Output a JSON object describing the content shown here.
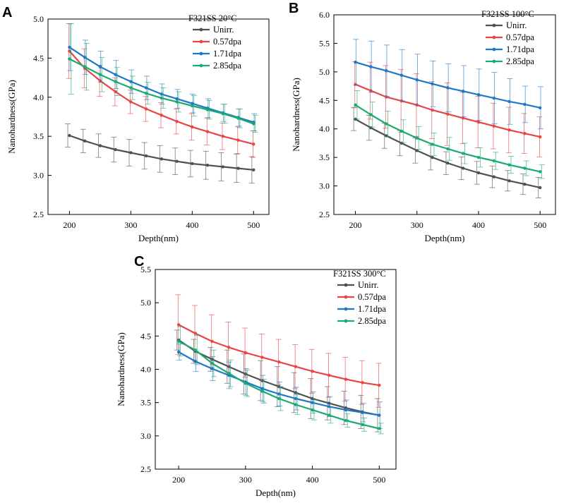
{
  "chart_data": [
    {
      "panel": "A",
      "type": "line",
      "title": "F321SS 20°C",
      "xlabel": "Depth(nm)",
      "ylabel": "Nanohardness(GPa)",
      "xlim": [
        165,
        525
      ],
      "ylim": [
        2.5,
        5.0
      ],
      "xticks": [
        200,
        300,
        400,
        500
      ],
      "yticks": [
        "2.5",
        "3.0",
        "3.5",
        "4.0",
        "4.5",
        "5.0"
      ],
      "legend_position": "top-right",
      "x": [
        200,
        225,
        250,
        275,
        300,
        325,
        350,
        375,
        400,
        425,
        450,
        475,
        500
      ],
      "series": [
        {
          "name": "Unirr.",
          "color": "#505050",
          "values": [
            3.51,
            3.44,
            3.38,
            3.33,
            3.29,
            3.25,
            3.21,
            3.18,
            3.15,
            3.13,
            3.11,
            3.09,
            3.07
          ],
          "errors": [
            0.15,
            0.15,
            0.15,
            0.16,
            0.17,
            0.17,
            0.17,
            0.17,
            0.17,
            0.18,
            0.18,
            0.18,
            0.17
          ]
        },
        {
          "name": "0.57dpa",
          "color": "#e84545",
          "values": [
            4.59,
            4.37,
            4.21,
            4.07,
            3.94,
            3.85,
            3.77,
            3.69,
            3.62,
            3.56,
            3.5,
            3.45,
            3.4
          ],
          "errors": [
            0.35,
            0.25,
            0.2,
            0.18,
            0.15,
            0.16,
            0.16,
            0.16,
            0.17,
            0.17,
            0.17,
            0.17,
            0.17
          ]
        },
        {
          "name": "1.71dpa",
          "color": "#1f77c8",
          "values": [
            4.64,
            4.51,
            4.39,
            4.29,
            4.2,
            4.12,
            4.04,
            3.98,
            3.92,
            3.86,
            3.8,
            3.74,
            3.68
          ],
          "errors": [
            0.3,
            0.22,
            0.2,
            0.18,
            0.15,
            0.15,
            0.13,
            0.12,
            0.12,
            0.12,
            0.11,
            0.11,
            0.11
          ]
        },
        {
          "name": "2.85dpa",
          "color": "#1aab6e",
          "values": [
            4.49,
            4.39,
            4.29,
            4.2,
            4.12,
            4.05,
            3.99,
            3.94,
            3.89,
            3.84,
            3.79,
            3.73,
            3.66
          ],
          "errors": [
            0.45,
            0.3,
            0.22,
            0.18,
            0.15,
            0.14,
            0.13,
            0.13,
            0.13,
            0.12,
            0.12,
            0.12,
            0.11
          ]
        }
      ]
    },
    {
      "panel": "B",
      "type": "line",
      "title": "F321SS 100°C",
      "xlabel": "Depth(nm)",
      "ylabel": "Nanohardness(GPa)",
      "xlim": [
        165,
        525
      ],
      "ylim": [
        2.5,
        6.0
      ],
      "xticks": [
        200,
        300,
        400,
        500
      ],
      "yticks": [
        "2.5",
        "3.0",
        "3.5",
        "4.0",
        "4.5",
        "5.0",
        "5.5",
        "6.0"
      ],
      "legend_position": "top-right",
      "x": [
        200,
        225,
        250,
        275,
        300,
        325,
        350,
        375,
        400,
        425,
        450,
        475,
        500
      ],
      "series": [
        {
          "name": "Unirr.",
          "color": "#505050",
          "values": [
            4.17,
            4.02,
            3.88,
            3.75,
            3.62,
            3.5,
            3.4,
            3.31,
            3.23,
            3.16,
            3.09,
            3.03,
            2.97
          ],
          "errors": [
            0.2,
            0.22,
            0.22,
            0.22,
            0.22,
            0.22,
            0.2,
            0.2,
            0.2,
            0.19,
            0.18,
            0.18,
            0.18
          ]
        },
        {
          "name": "0.57dpa",
          "color": "#e84545",
          "values": [
            4.78,
            4.67,
            4.56,
            4.49,
            4.42,
            4.33,
            4.26,
            4.19,
            4.12,
            4.05,
            3.98,
            3.92,
            3.86
          ],
          "errors": [
            0.4,
            0.5,
            0.55,
            0.55,
            0.55,
            0.5,
            0.55,
            0.45,
            0.45,
            0.4,
            0.4,
            0.35,
            0.35
          ]
        },
        {
          "name": "1.71dpa",
          "color": "#1f77c8",
          "values": [
            5.17,
            5.09,
            5.02,
            4.94,
            4.86,
            4.79,
            4.72,
            4.66,
            4.6,
            4.54,
            4.48,
            4.43,
            4.37
          ],
          "errors": [
            0.4,
            0.45,
            0.45,
            0.45,
            0.45,
            0.4,
            0.42,
            0.45,
            0.45,
            0.45,
            0.4,
            0.32,
            0.37
          ]
        },
        {
          "name": "2.85dpa",
          "color": "#1aab6e",
          "values": [
            4.42,
            4.25,
            4.09,
            3.96,
            3.84,
            3.73,
            3.65,
            3.57,
            3.5,
            3.44,
            3.37,
            3.31,
            3.25
          ],
          "errors": [
            0.25,
            0.22,
            0.22,
            0.2,
            0.2,
            0.2,
            0.2,
            0.18,
            0.17,
            0.15,
            0.15,
            0.13,
            0.12
          ]
        }
      ]
    },
    {
      "panel": "C",
      "type": "line",
      "title": "F321SS 300°C",
      "xlabel": "Depth(nm)",
      "ylabel": "Nanohardness(GPa)",
      "xlim": [
        165,
        525
      ],
      "ylim": [
        2.5,
        5.5
      ],
      "xticks": [
        200,
        300,
        400,
        500
      ],
      "yticks": [
        "2.5",
        "3.0",
        "3.5",
        "4.0",
        "4.5",
        "5.0",
        "5.5"
      ],
      "legend_position": "top-right",
      "x": [
        200,
        225,
        250,
        275,
        300,
        325,
        350,
        375,
        400,
        425,
        450,
        475,
        500
      ],
      "series": [
        {
          "name": "Unirr.",
          "color": "#505050",
          "values": [
            4.44,
            4.27,
            4.15,
            4.04,
            3.93,
            3.83,
            3.74,
            3.65,
            3.56,
            3.49,
            3.42,
            3.36,
            3.31
          ],
          "errors": [
            0.15,
            0.18,
            0.18,
            0.25,
            0.3,
            0.3,
            0.3,
            0.3,
            0.3,
            0.25,
            0.25,
            0.25,
            0.25
          ]
        },
        {
          "name": "0.57dpa",
          "color": "#e84545",
          "values": [
            4.67,
            4.54,
            4.42,
            4.33,
            4.25,
            4.18,
            4.11,
            4.04,
            3.97,
            3.91,
            3.85,
            3.8,
            3.76
          ],
          "errors": [
            0.45,
            0.42,
            0.4,
            0.38,
            0.37,
            0.35,
            0.34,
            0.33,
            0.33,
            0.33,
            0.33,
            0.33,
            0.33
          ]
        },
        {
          "name": "1.71dpa",
          "color": "#1f77c8",
          "values": [
            4.26,
            4.12,
            4.01,
            3.91,
            3.81,
            3.71,
            3.63,
            3.56,
            3.5,
            3.44,
            3.39,
            3.35,
            3.31
          ],
          "errors": [
            0.12,
            0.15,
            0.18,
            0.2,
            0.2,
            0.2,
            0.18,
            0.17,
            0.16,
            0.15,
            0.15,
            0.14,
            0.2
          ]
        },
        {
          "name": "2.85dpa",
          "color": "#1aab6e",
          "values": [
            4.42,
            4.29,
            4.09,
            3.94,
            3.79,
            3.67,
            3.56,
            3.47,
            3.39,
            3.31,
            3.23,
            3.17,
            3.11
          ],
          "errors": [
            0.22,
            0.22,
            0.2,
            0.2,
            0.2,
            0.18,
            0.18,
            0.15,
            0.15,
            0.12,
            0.1,
            0.1,
            0.08
          ]
        }
      ]
    }
  ]
}
